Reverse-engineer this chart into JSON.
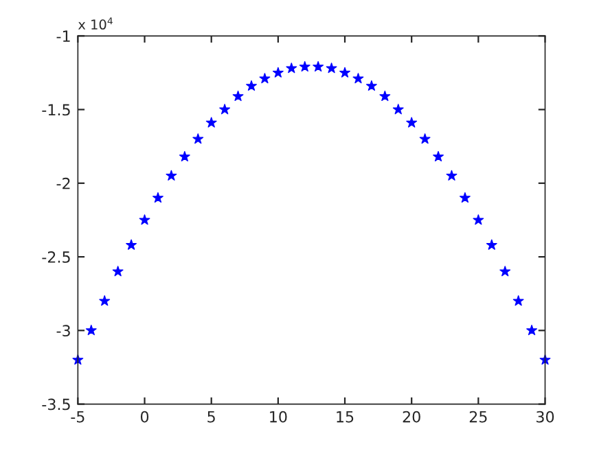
{
  "chart_data": {
    "type": "scatter",
    "x": [
      -5,
      -4,
      -3,
      -2,
      -1,
      0,
      1,
      2,
      3,
      4,
      5,
      6,
      7,
      8,
      9,
      10,
      11,
      12,
      13,
      14,
      15,
      16,
      17,
      18,
      19,
      20,
      21,
      22,
      23,
      24,
      25,
      26,
      27,
      28,
      29,
      30
    ],
    "series": [
      {
        "color": "#0000ff",
        "values": [
          -3.2,
          -3.0,
          -2.8,
          -2.6,
          -2.42,
          -2.25,
          -2.1,
          -1.95,
          -1.82,
          -1.7,
          -1.59,
          -1.5,
          -1.41,
          -1.34,
          -1.29,
          -1.25,
          -1.22,
          -1.21,
          -1.21,
          -1.22,
          -1.25,
          -1.29,
          -1.34,
          -1.41,
          -1.5,
          -1.59,
          -1.7,
          -1.82,
          -1.95,
          -2.1,
          -2.25,
          -2.42,
          -2.6,
          -2.8,
          -3.0,
          -3.2
        ]
      }
    ],
    "xlim": [
      -5,
      30
    ],
    "xticks": [
      -5,
      0,
      5,
      10,
      15,
      20,
      25,
      30
    ],
    "ylim": [
      -3.5,
      -1
    ],
    "yticks": [
      -3.5,
      -3,
      -2.5,
      -2,
      -1.5,
      -1
    ],
    "annotations": [
      "x 10$^{4}$"
    ],
    "marker": "star",
    "grid": false
  }
}
